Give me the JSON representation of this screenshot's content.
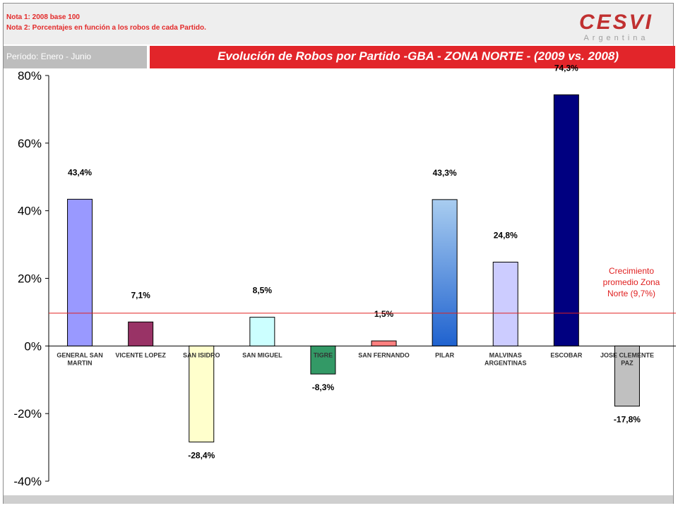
{
  "header": {
    "notes": [
      "Nota 1: 2008 base 100",
      "Nota 2: Porcentajes en función a los robos de cada Partido."
    ],
    "logo": {
      "name": "CESVI",
      "subtitle": "Argentina"
    }
  },
  "period_label": "Período: Enero  - Junio",
  "title": "Evolución de Robos por Partido -GBA - ZONA NORTE - (2009 vs. 2008)",
  "chart_data": {
    "type": "bar",
    "title": "Evolución de Robos por Partido -GBA - ZONA NORTE - (2009 vs. 2008)",
    "categories": [
      [
        "GENERAL SAN",
        "MARTIN"
      ],
      [
        "VICENTE LOPEZ"
      ],
      [
        "SAN ISIDRO"
      ],
      [
        "SAN MIGUEL"
      ],
      [
        "TIGRE"
      ],
      [
        "SAN FERNANDO"
      ],
      [
        "PILAR"
      ],
      [
        "MALVINAS",
        "ARGENTINAS"
      ],
      [
        "ESCOBAR"
      ],
      [
        "JOSE CLEMENTE",
        "PAZ"
      ]
    ],
    "values": [
      43.4,
      7.1,
      -28.4,
      8.5,
      -8.3,
      1.5,
      43.3,
      24.8,
      74.3,
      -17.8
    ],
    "value_labels": [
      "43,4%",
      "7,1%",
      "-28,4%",
      "8,5%",
      "-8,3%",
      "1,5%",
      "43,3%",
      "24,8%",
      "74,3%",
      "-17,8%"
    ],
    "colors": [
      "#9999ff",
      "#993366",
      "#ffffcc",
      "#ccffff",
      "#339966",
      "#ff8080",
      "#3a7fd5",
      "#ccccff",
      "#000080",
      "#c0c0c0"
    ],
    "ylim": [
      -40,
      80
    ],
    "yticks": [
      80,
      60,
      40,
      20,
      0,
      -20,
      -40
    ],
    "ytick_labels": [
      "80%",
      "60%",
      "40%",
      "20%",
      "0%",
      "-20%",
      "-40%"
    ],
    "reference_line": {
      "value": 9.7,
      "color": "#e02020",
      "label": [
        "Crecimiento",
        "promedio Zona",
        "Norte (9,7%)"
      ]
    }
  }
}
